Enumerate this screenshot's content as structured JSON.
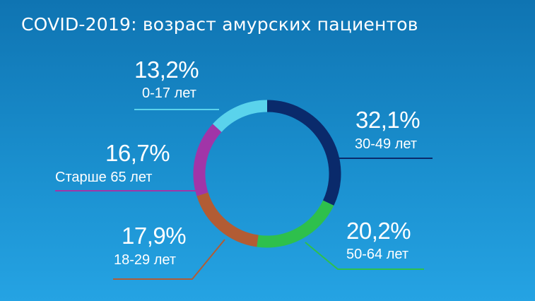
{
  "title": "COVID-2019: возраст амурских пациентов",
  "chart_data": {
    "type": "pie",
    "variant": "donut",
    "title": "COVID-2019: возраст амурских пациентов",
    "slices": [
      {
        "label": "30-49 лет",
        "value": 32.1,
        "value_label": "32,1%",
        "color": "#0a2a6b"
      },
      {
        "label": "50-64 лет",
        "value": 20.2,
        "value_label": "20,2%",
        "color": "#2ec04c"
      },
      {
        "label": "18-29 лет",
        "value": 17.9,
        "value_label": "17,9%",
        "color": "#b25c34"
      },
      {
        "label": "Старше 65 лет",
        "value": 16.7,
        "value_label": "16,7%",
        "color": "#a135a8"
      },
      {
        "label": "0-17 лет",
        "value": 13.2,
        "value_label": "13,2%",
        "color": "#5ad3ec"
      }
    ]
  }
}
